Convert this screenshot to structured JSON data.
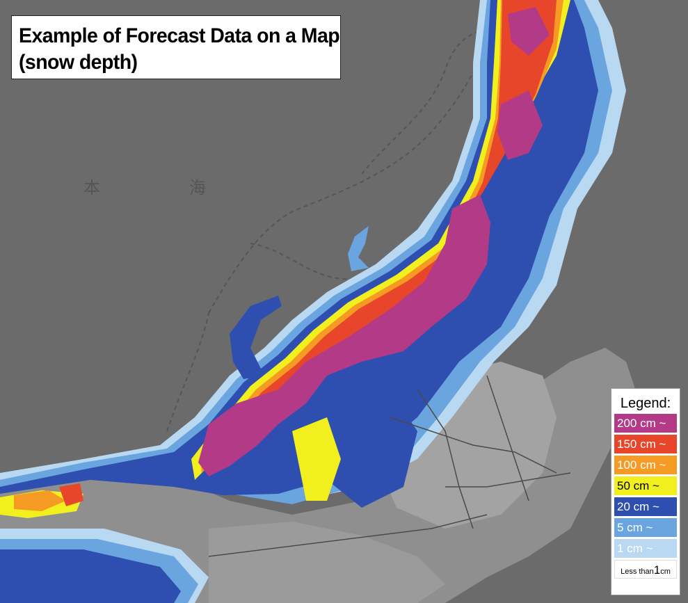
{
  "title": {
    "line1": "Example of Forecast Data on a Map",
    "line2": "(snow depth)"
  },
  "map_labels": {
    "sea_char1": "本",
    "sea_char2": "海"
  },
  "legend": {
    "title": "Legend:",
    "items": [
      {
        "label": "200 cm ~",
        "color": "#b33a86",
        "text_color": "#ffffff"
      },
      {
        "label": "150 cm ~",
        "color": "#e8462a",
        "text_color": "#ffffff"
      },
      {
        "label": "100 cm ~",
        "color": "#f59a22",
        "text_color": "#ffffff"
      },
      {
        "label": "50 cm ~",
        "color": "#f2ef1e",
        "text_color": "#000000"
      },
      {
        "label": "20 cm ~",
        "color": "#2e4fb0",
        "text_color": "#ffffff"
      },
      {
        "label": "5 cm ~",
        "color": "#6aa5e0",
        "text_color": "#ffffff"
      },
      {
        "label": "1 cm ~",
        "color": "#b9d8f2",
        "text_color": "#ffffff"
      }
    ],
    "last_small1": "Less than",
    "last_big": "1",
    "last_small2": "cm"
  },
  "colors": {
    "sea": "#6b6b6b",
    "land": "#8a8a8a",
    "land_urban": "#a5a5a5"
  }
}
